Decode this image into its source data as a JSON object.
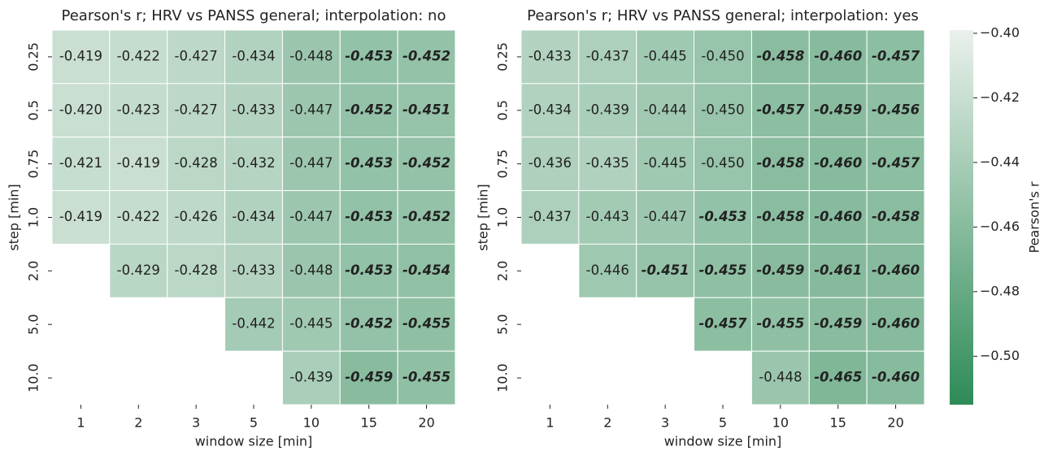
{
  "chart_data": [
    {
      "type": "heatmap",
      "title": "Pearson's r; HRV vs PANSS general; interpolation: no",
      "x_label": "window size [min]",
      "y_label": "step [min]",
      "categories": [
        "1",
        "2",
        "3",
        "5",
        "10",
        "15",
        "20"
      ],
      "rows": [
        "0.25",
        "0.5",
        "0.75",
        "1.0",
        "2.0",
        "5.0",
        "10.0"
      ],
      "values": [
        [
          -0.419,
          -0.422,
          -0.427,
          -0.434,
          -0.448,
          -0.453,
          -0.452
        ],
        [
          -0.42,
          -0.423,
          -0.427,
          -0.433,
          -0.447,
          -0.452,
          -0.451
        ],
        [
          -0.421,
          -0.419,
          -0.428,
          -0.432,
          -0.447,
          -0.453,
          -0.452
        ],
        [
          -0.419,
          -0.422,
          -0.426,
          -0.434,
          -0.447,
          -0.453,
          -0.452
        ],
        [
          null,
          -0.429,
          -0.428,
          -0.433,
          -0.448,
          -0.453,
          -0.454
        ],
        [
          null,
          null,
          null,
          -0.442,
          -0.445,
          -0.452,
          -0.455
        ],
        [
          null,
          null,
          null,
          null,
          -0.439,
          -0.459,
          -0.455
        ]
      ],
      "value_labels": [
        [
          "-0.419",
          "-0.422",
          "-0.427",
          "-0.434",
          "-0.448",
          "-0.453",
          "-0.452"
        ],
        [
          "-0.420",
          "-0.423",
          "-0.427",
          "-0.433",
          "-0.447",
          "-0.452",
          "-0.451"
        ],
        [
          "-0.421",
          "-0.419",
          "-0.428",
          "-0.432",
          "-0.447",
          "-0.453",
          "-0.452"
        ],
        [
          "-0.419",
          "-0.422",
          "-0.426",
          "-0.434",
          "-0.447",
          "-0.453",
          "-0.452"
        ],
        [
          null,
          "-0.429",
          "-0.428",
          "-0.433",
          "-0.448",
          "-0.453",
          "-0.454"
        ],
        [
          null,
          null,
          null,
          "-0.442",
          "-0.445",
          "-0.452",
          "-0.455"
        ],
        [
          null,
          null,
          null,
          null,
          "-0.439",
          "-0.459",
          "-0.455"
        ]
      ],
      "zlim": [
        -0.515,
        -0.399
      ],
      "colors": [
        "#2e8b57",
        "#eaf1ec"
      ]
    },
    {
      "type": "heatmap",
      "title": "Pearson's r; HRV vs PANSS general; interpolation: yes",
      "x_label": "window size [min]",
      "y_label": "step [min]",
      "categories": [
        "1",
        "2",
        "3",
        "5",
        "10",
        "15",
        "20"
      ],
      "rows": [
        "0.25",
        "0.5",
        "0.75",
        "1.0",
        "2.0",
        "5.0",
        "10.0"
      ],
      "values": [
        [
          -0.433,
          -0.437,
          -0.445,
          -0.45,
          -0.458,
          -0.46,
          -0.457
        ],
        [
          -0.434,
          -0.439,
          -0.444,
          -0.45,
          -0.457,
          -0.459,
          -0.456
        ],
        [
          -0.436,
          -0.435,
          -0.445,
          -0.45,
          -0.458,
          -0.46,
          -0.457
        ],
        [
          -0.437,
          -0.443,
          -0.447,
          -0.453,
          -0.458,
          -0.46,
          -0.458
        ],
        [
          null,
          -0.446,
          -0.451,
          -0.455,
          -0.459,
          -0.461,
          -0.46
        ],
        [
          null,
          null,
          null,
          -0.457,
          -0.455,
          -0.459,
          -0.46
        ],
        [
          null,
          null,
          null,
          null,
          -0.448,
          -0.465,
          -0.46
        ]
      ],
      "value_labels": [
        [
          "-0.433",
          "-0.437",
          "-0.445",
          "-0.450",
          "-0.458",
          "-0.460",
          "-0.457"
        ],
        [
          "-0.434",
          "-0.439",
          "-0.444",
          "-0.450",
          "-0.457",
          "-0.459",
          "-0.456"
        ],
        [
          "-0.436",
          "-0.435",
          "-0.445",
          "-0.450",
          "-0.458",
          "-0.460",
          "-0.457"
        ],
        [
          "-0.437",
          "-0.443",
          "-0.447",
          "-0.453",
          "-0.458",
          "-0.460",
          "-0.458"
        ],
        [
          null,
          "-0.446",
          "-0.451",
          "-0.455",
          "-0.459",
          "-0.461",
          "-0.460"
        ],
        [
          null,
          null,
          null,
          "-0.457",
          "-0.455",
          "-0.459",
          "-0.460"
        ],
        [
          null,
          null,
          null,
          null,
          "-0.448",
          "-0.465",
          "-0.460"
        ]
      ],
      "zlim": [
        -0.515,
        -0.399
      ],
      "colors": [
        "#2e8b57",
        "#eaf1ec"
      ],
      "colorbar_label": "Pearson's r",
      "zticks": [
        {
          "value": -0.4,
          "label": "−0.40"
        },
        {
          "value": -0.42,
          "label": "−0.42"
        },
        {
          "value": -0.44,
          "label": "−0.44"
        },
        {
          "value": -0.46,
          "label": "−0.46"
        },
        {
          "value": -0.48,
          "label": "−0.48"
        },
        {
          "value": -0.5,
          "label": "−0.50"
        }
      ]
    }
  ]
}
